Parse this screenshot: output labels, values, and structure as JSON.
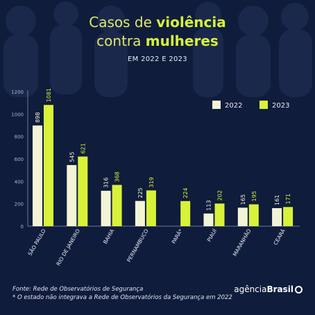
{
  "header": {
    "title_line1_light": "Casos de ",
    "title_line1_bold": "violência",
    "title_line2_light": "contra ",
    "title_line2_bold": "mulheres",
    "subtitle": "EM 2022 E 2023"
  },
  "footer": {
    "source": "Fonte: Rede de Observatórios de Segurança",
    "note": "* O estado não integrava a Rede de Observatórios da Segurança em 2022",
    "logo_light": "agência",
    "logo_bold": "Brasil"
  },
  "colors": {
    "background": "#0f1c3c",
    "series_2022": "#f3f4d6",
    "series_2023": "#d8f23a"
  },
  "chart_data": {
    "type": "bar",
    "categories": [
      "SÃO PAULO",
      "RIO DE JANEIRO",
      "BAHIA",
      "PERNAMBUCO",
      "PARÁ*",
      "PIAUÍ",
      "MARANHÃO",
      "CEARÁ"
    ],
    "series": [
      {
        "name": "2022",
        "values": [
          898,
          545,
          316,
          225,
          null,
          113,
          165,
          161
        ]
      },
      {
        "name": "2023",
        "values": [
          1081,
          621,
          368,
          319,
          224,
          202,
          195,
          171
        ]
      }
    ],
    "yticks": [
      "0",
      "200",
      "400",
      "600",
      "800",
      "1000",
      "1200"
    ],
    "ylim": [
      0,
      1200
    ],
    "grid": false,
    "legend_position": "top-right"
  }
}
